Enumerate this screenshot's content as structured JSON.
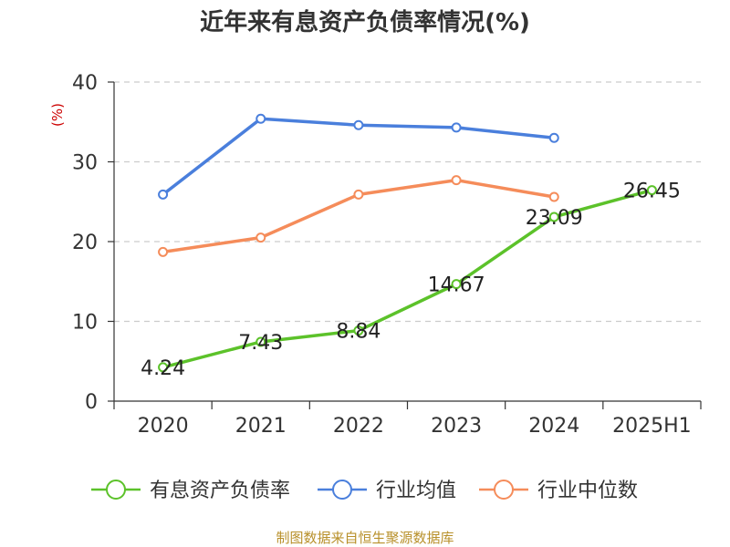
{
  "chart_data": {
    "type": "line",
    "title": "近年来有息资产负债率情况(%)",
    "unit_label": "(%)",
    "categories": [
      "2020",
      "2021",
      "2022",
      "2023",
      "2024",
      "2025H1"
    ],
    "ylim": [
      0,
      40
    ],
    "yticks": [
      0,
      10,
      20,
      30,
      40
    ],
    "grid": true,
    "legend_position": "bottom",
    "series": [
      {
        "name": "有息资产负债率",
        "color": "#5cc22a",
        "values": [
          4.24,
          7.43,
          8.84,
          14.67,
          23.09,
          26.45
        ],
        "labels": [
          "4.24",
          "7.43",
          "8.84",
          "14.67",
          "23.09",
          "26.45"
        ]
      },
      {
        "name": "行业均值",
        "color": "#4a7fdc",
        "values": [
          25.9,
          35.4,
          34.6,
          34.3,
          33.0,
          null
        ]
      },
      {
        "name": "行业中位数",
        "color": "#f58c5a",
        "values": [
          18.7,
          20.5,
          25.9,
          27.7,
          25.6,
          null
        ]
      }
    ]
  },
  "source": "制图数据来自恒生聚源数据库"
}
